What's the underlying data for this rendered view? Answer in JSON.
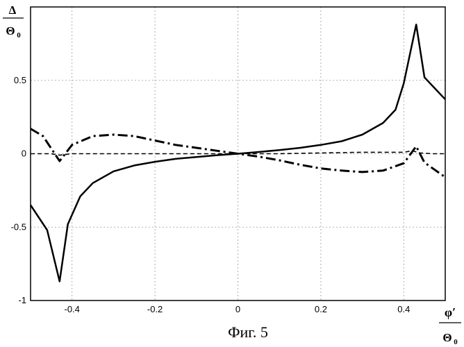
{
  "chart_data": {
    "type": "line",
    "title": "",
    "caption": "Фиг. 5",
    "ylabel": {
      "numerator": "Δ",
      "denominator": "Θ",
      "denominator_sub": "0"
    },
    "xlabel": {
      "numerator": "φ′",
      "denominator": "Θ",
      "denominator_sub": "0"
    },
    "xlim": [
      -0.5,
      0.5
    ],
    "ylim": [
      -1,
      1
    ],
    "grid": true,
    "xticks": [
      {
        "value": -0.4,
        "label": "-0.4"
      },
      {
        "value": -0.2,
        "label": "-0.2"
      },
      {
        "value": 0,
        "label": "0"
      },
      {
        "value": 0.2,
        "label": "0.2"
      },
      {
        "value": 0.4,
        "label": "0.4"
      }
    ],
    "yticks": [
      {
        "value": -1,
        "label": "-1"
      },
      {
        "value": -0.5,
        "label": "-0.5"
      },
      {
        "value": 0,
        "label": "0"
      },
      {
        "value": 0.5,
        "label": "0.5"
      }
    ],
    "series": [
      {
        "name": "solid",
        "style": "solid",
        "width": 2.5,
        "x": [
          -0.5,
          -0.46,
          -0.43,
          -0.41,
          -0.38,
          -0.35,
          -0.3,
          -0.25,
          -0.2,
          -0.15,
          -0.1,
          -0.05,
          0,
          0.05,
          0.1,
          0.15,
          0.2,
          0.25,
          0.3,
          0.35,
          0.38,
          0.4,
          0.43,
          0.45,
          0.5
        ],
        "y": [
          -0.35,
          -0.52,
          -0.87,
          -0.48,
          -0.29,
          -0.2,
          -0.12,
          -0.08,
          -0.055,
          -0.035,
          -0.022,
          -0.01,
          0,
          0.012,
          0.025,
          0.04,
          0.06,
          0.085,
          0.13,
          0.21,
          0.3,
          0.48,
          0.88,
          0.52,
          0.37
        ]
      },
      {
        "name": "dash-dot",
        "style": "dashdot",
        "width": 3,
        "x": [
          -0.5,
          -0.47,
          -0.43,
          -0.4,
          -0.35,
          -0.3,
          -0.25,
          -0.2,
          -0.15,
          -0.1,
          -0.05,
          0,
          0.05,
          0.1,
          0.15,
          0.2,
          0.25,
          0.3,
          0.35,
          0.4,
          0.43,
          0.45,
          0.5
        ],
        "y": [
          0.17,
          0.12,
          -0.05,
          0.06,
          0.12,
          0.13,
          0.12,
          0.09,
          0.06,
          0.04,
          0.02,
          0,
          -0.02,
          -0.045,
          -0.075,
          -0.1,
          -0.115,
          -0.125,
          -0.115,
          -0.065,
          0.05,
          -0.06,
          -0.16
        ]
      },
      {
        "name": "dashed",
        "style": "dashed",
        "width": 1.6,
        "x": [
          -0.5,
          -0.45,
          -0.43,
          -0.4,
          -0.3,
          -0.2,
          -0.1,
          0,
          0.1,
          0.2,
          0.3,
          0.4,
          0.42,
          0.44,
          0.47,
          0.5
        ],
        "y": [
          0.0,
          0.0,
          -0.01,
          0.0,
          0.0,
          0.0,
          0.0,
          0.0,
          0.0,
          0.005,
          0.01,
          0.01,
          0.02,
          0.005,
          0.0,
          0.0
        ]
      }
    ]
  }
}
